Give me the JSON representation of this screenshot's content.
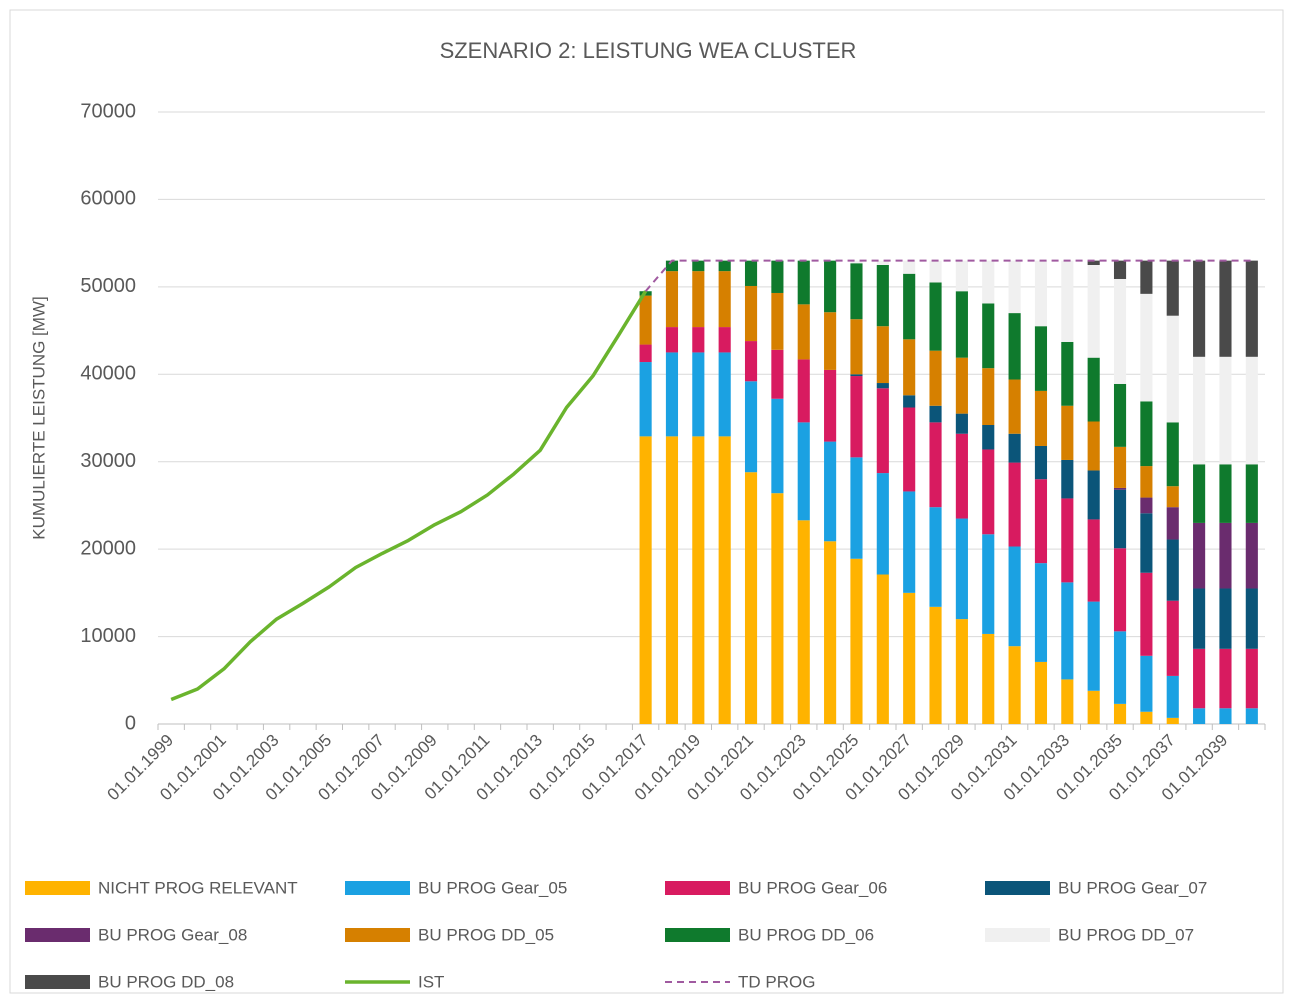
{
  "chart_data": {
    "type": "bar",
    "stacked": true,
    "title": "SZENARIO 2: LEISTUNG WEA CLUSTER",
    "y_label": "KUMULIERTE LEISTUNG [MW]",
    "categories": [
      "01.01.1999",
      null,
      "01.01.2001",
      null,
      "01.01.2003",
      null,
      "01.01.2005",
      null,
      "01.01.2007",
      null,
      "01.01.2009",
      null,
      "01.01.2011",
      null,
      "01.01.2013",
      null,
      "01.01.2015",
      null,
      "01.01.2017",
      null,
      "01.01.2019",
      null,
      "01.01.2021",
      null,
      "01.01.2023",
      null,
      "01.01.2025",
      null,
      "01.01.2027",
      null,
      "01.01.2029",
      null,
      "01.01.2031",
      null,
      "01.01.2033",
      null,
      "01.01.2035",
      null,
      "01.01.2037",
      null,
      "01.01.2039",
      null
    ],
    "ylim": [
      0,
      70000
    ],
    "yticks": [
      0,
      10000,
      20000,
      30000,
      40000,
      50000,
      60000,
      70000
    ],
    "grid": true,
    "legend": "bottom",
    "series": [
      {
        "name": "NICHT PROG RELEVANT",
        "color": "#ffb300",
        "values": [
          null,
          null,
          null,
          null,
          null,
          null,
          null,
          null,
          null,
          null,
          null,
          null,
          null,
          null,
          null,
          null,
          null,
          null,
          32900,
          32900,
          32900,
          32900,
          28800,
          26400,
          23300,
          20900,
          18900,
          17100,
          15000,
          13400,
          12000,
          10300,
          8900,
          7100,
          5100,
          3800,
          2300,
          1400,
          700,
          0,
          0,
          0
        ]
      },
      {
        "name": "BU PROG Gear_05",
        "color": "#1ba1e2",
        "values": [
          null,
          null,
          null,
          null,
          null,
          null,
          null,
          null,
          null,
          null,
          null,
          null,
          null,
          null,
          null,
          null,
          null,
          null,
          8500,
          9600,
          9600,
          9600,
          10400,
          10800,
          11200,
          11400,
          11600,
          11600,
          11600,
          11400,
          11500,
          11400,
          11400,
          11300,
          11100,
          10200,
          8300,
          6400,
          4800,
          1800,
          1800,
          1800
        ]
      },
      {
        "name": "BU PROG Gear_06",
        "color": "#d81b60",
        "values": [
          null,
          null,
          null,
          null,
          null,
          null,
          null,
          null,
          null,
          null,
          null,
          null,
          null,
          null,
          null,
          null,
          null,
          null,
          2000,
          2900,
          2900,
          2900,
          4600,
          5600,
          7200,
          8200,
          9300,
          9700,
          9600,
          9700,
          9700,
          9700,
          9600,
          9600,
          9600,
          9400,
          9500,
          9500,
          8600,
          6800,
          6800,
          6800
        ]
      },
      {
        "name": "BU PROG Gear_07",
        "color": "#0b5579",
        "values": [
          null,
          null,
          null,
          null,
          null,
          null,
          null,
          null,
          null,
          null,
          null,
          null,
          null,
          null,
          null,
          null,
          null,
          null,
          0,
          0,
          0,
          0,
          0,
          0,
          0,
          0,
          200,
          600,
          1400,
          1900,
          2300,
          2800,
          3300,
          3800,
          4400,
          5600,
          6700,
          6800,
          7000,
          6900,
          6900,
          6900
        ]
      },
      {
        "name": "BU PROG Gear_08",
        "color": "#6a2c6e",
        "values": [
          null,
          null,
          null,
          null,
          null,
          null,
          null,
          null,
          null,
          null,
          null,
          null,
          null,
          null,
          null,
          null,
          null,
          null,
          0,
          0,
          0,
          0,
          0,
          0,
          0,
          0,
          0,
          0,
          0,
          0,
          0,
          0,
          0,
          0,
          0,
          0,
          200,
          1800,
          3700,
          7500,
          7500,
          7500
        ]
      },
      {
        "name": "BU PROG DD_05",
        "color": "#d68000",
        "values": [
          null,
          null,
          null,
          null,
          null,
          null,
          null,
          null,
          null,
          null,
          null,
          null,
          null,
          null,
          null,
          null,
          null,
          null,
          5600,
          6400,
          6400,
          6400,
          6300,
          6500,
          6300,
          6600,
          6300,
          6500,
          6400,
          6300,
          6400,
          6500,
          6200,
          6300,
          6200,
          5600,
          4700,
          3600,
          2400,
          0,
          0,
          0
        ]
      },
      {
        "name": "BU PROG DD_06",
        "color": "#0f7a2d",
        "values": [
          null,
          null,
          null,
          null,
          null,
          null,
          null,
          null,
          null,
          null,
          null,
          null,
          null,
          null,
          null,
          null,
          null,
          null,
          500,
          1200,
          1200,
          1200,
          2900,
          3700,
          5000,
          5900,
          6400,
          7000,
          7500,
          7800,
          7600,
          7400,
          7600,
          7400,
          7300,
          7300,
          7200,
          7400,
          7300,
          6700,
          6700,
          6700
        ]
      },
      {
        "name": "BU PROG DD_07",
        "color": "#f0f0f0",
        "values": [
          null,
          null,
          null,
          null,
          null,
          null,
          null,
          null,
          null,
          null,
          null,
          null,
          null,
          null,
          null,
          null,
          null,
          null,
          0,
          0,
          0,
          0,
          0,
          0,
          0,
          0,
          300,
          500,
          1500,
          2500,
          3500,
          4900,
          6000,
          7500,
          9300,
          10600,
          12000,
          12300,
          12200,
          12300,
          12300,
          12300
        ]
      },
      {
        "name": "BU PROG DD_08",
        "color": "#4a4a4a",
        "values": [
          null,
          null,
          null,
          null,
          null,
          null,
          null,
          null,
          null,
          null,
          null,
          null,
          null,
          null,
          null,
          null,
          null,
          null,
          0,
          0,
          0,
          0,
          0,
          0,
          0,
          0,
          0,
          0,
          0,
          0,
          0,
          0,
          0,
          0,
          0,
          500,
          2100,
          3800,
          6300,
          11000,
          11000,
          11000
        ]
      },
      {
        "name": "IST",
        "type": "line",
        "color": "#6ab42d",
        "values": [
          2800,
          4000,
          6300,
          9400,
          12000,
          13800,
          15700,
          17900,
          19500,
          21000,
          22800,
          24300,
          26200,
          28600,
          31300,
          36200,
          39800,
          44600,
          49500,
          null,
          null,
          null,
          null,
          null,
          null,
          null,
          null,
          null,
          null,
          null,
          null,
          null,
          null,
          null,
          null,
          null,
          null,
          null,
          null,
          null,
          null,
          null
        ]
      },
      {
        "name": "TD PROG",
        "type": "line",
        "dashed": true,
        "color": "#a05aa0",
        "values": [
          null,
          null,
          null,
          null,
          null,
          null,
          null,
          null,
          null,
          null,
          null,
          null,
          null,
          null,
          null,
          null,
          null,
          null,
          49500,
          53000,
          53000,
          53000,
          53000,
          53000,
          53000,
          53000,
          53000,
          53000,
          53000,
          53000,
          53000,
          53000,
          53000,
          53000,
          53000,
          53000,
          53000,
          53000,
          53000,
          53000,
          53000,
          53000
        ]
      }
    ]
  }
}
